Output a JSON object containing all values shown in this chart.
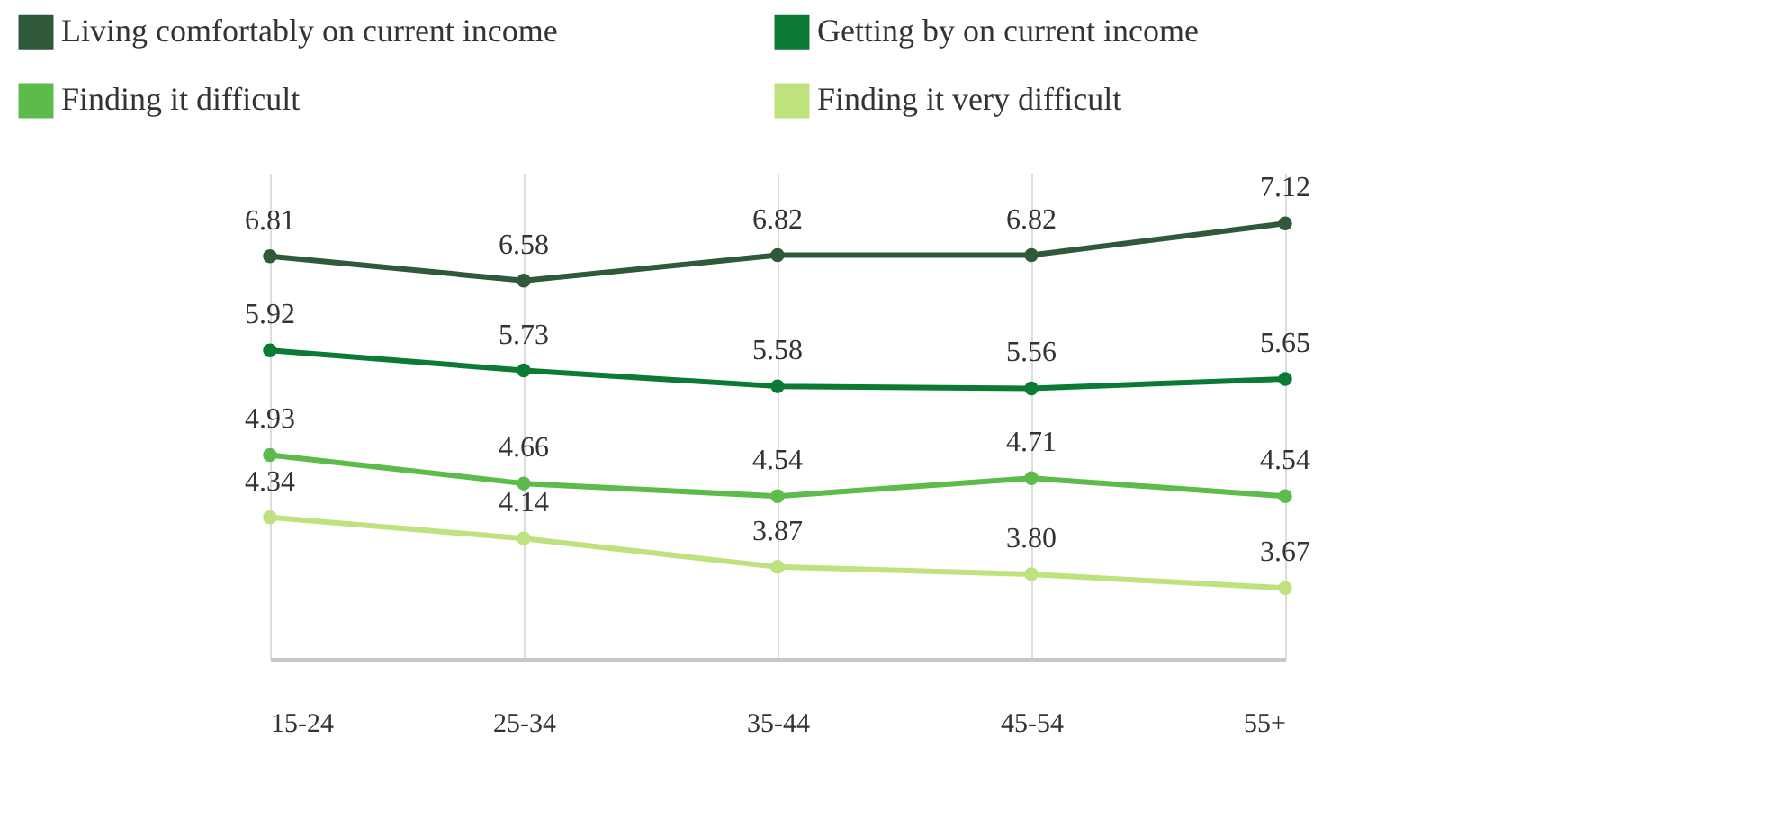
{
  "chart_data": {
    "type": "line",
    "categories": [
      "15-24",
      "25-34",
      "35-44",
      "45-54",
      "55+"
    ],
    "series": [
      {
        "name": "Living comfortably on current income",
        "color": "#2e5a3a",
        "values": [
          6.81,
          6.58,
          6.82,
          6.82,
          7.12
        ],
        "value_labels": [
          "6.81",
          "6.58",
          "6.82",
          "6.82",
          "7.12"
        ]
      },
      {
        "name": "Getting by on current income",
        "color": "#0b7a34",
        "values": [
          5.92,
          5.73,
          5.58,
          5.56,
          5.65
        ],
        "value_labels": [
          "5.92",
          "5.73",
          "5.58",
          "5.56",
          "5.65"
        ]
      },
      {
        "name": "Finding it difficult",
        "color": "#5dbb4c",
        "values": [
          4.93,
          4.66,
          4.54,
          4.71,
          4.54
        ],
        "value_labels": [
          "4.93",
          "4.66",
          "4.54",
          "4.71",
          "4.54"
        ]
      },
      {
        "name": "Finding it very difficult",
        "color": "#bde27e",
        "values": [
          4.34,
          4.14,
          3.87,
          3.8,
          3.67
        ],
        "value_labels": [
          "4.34",
          "4.14",
          "3.87",
          "3.80",
          "3.67"
        ]
      }
    ],
    "ylim": [
      3,
      7.6
    ],
    "grid": "x",
    "legend": "top",
    "marker": "circle",
    "line_style": "solid",
    "tick_labels": "x"
  }
}
